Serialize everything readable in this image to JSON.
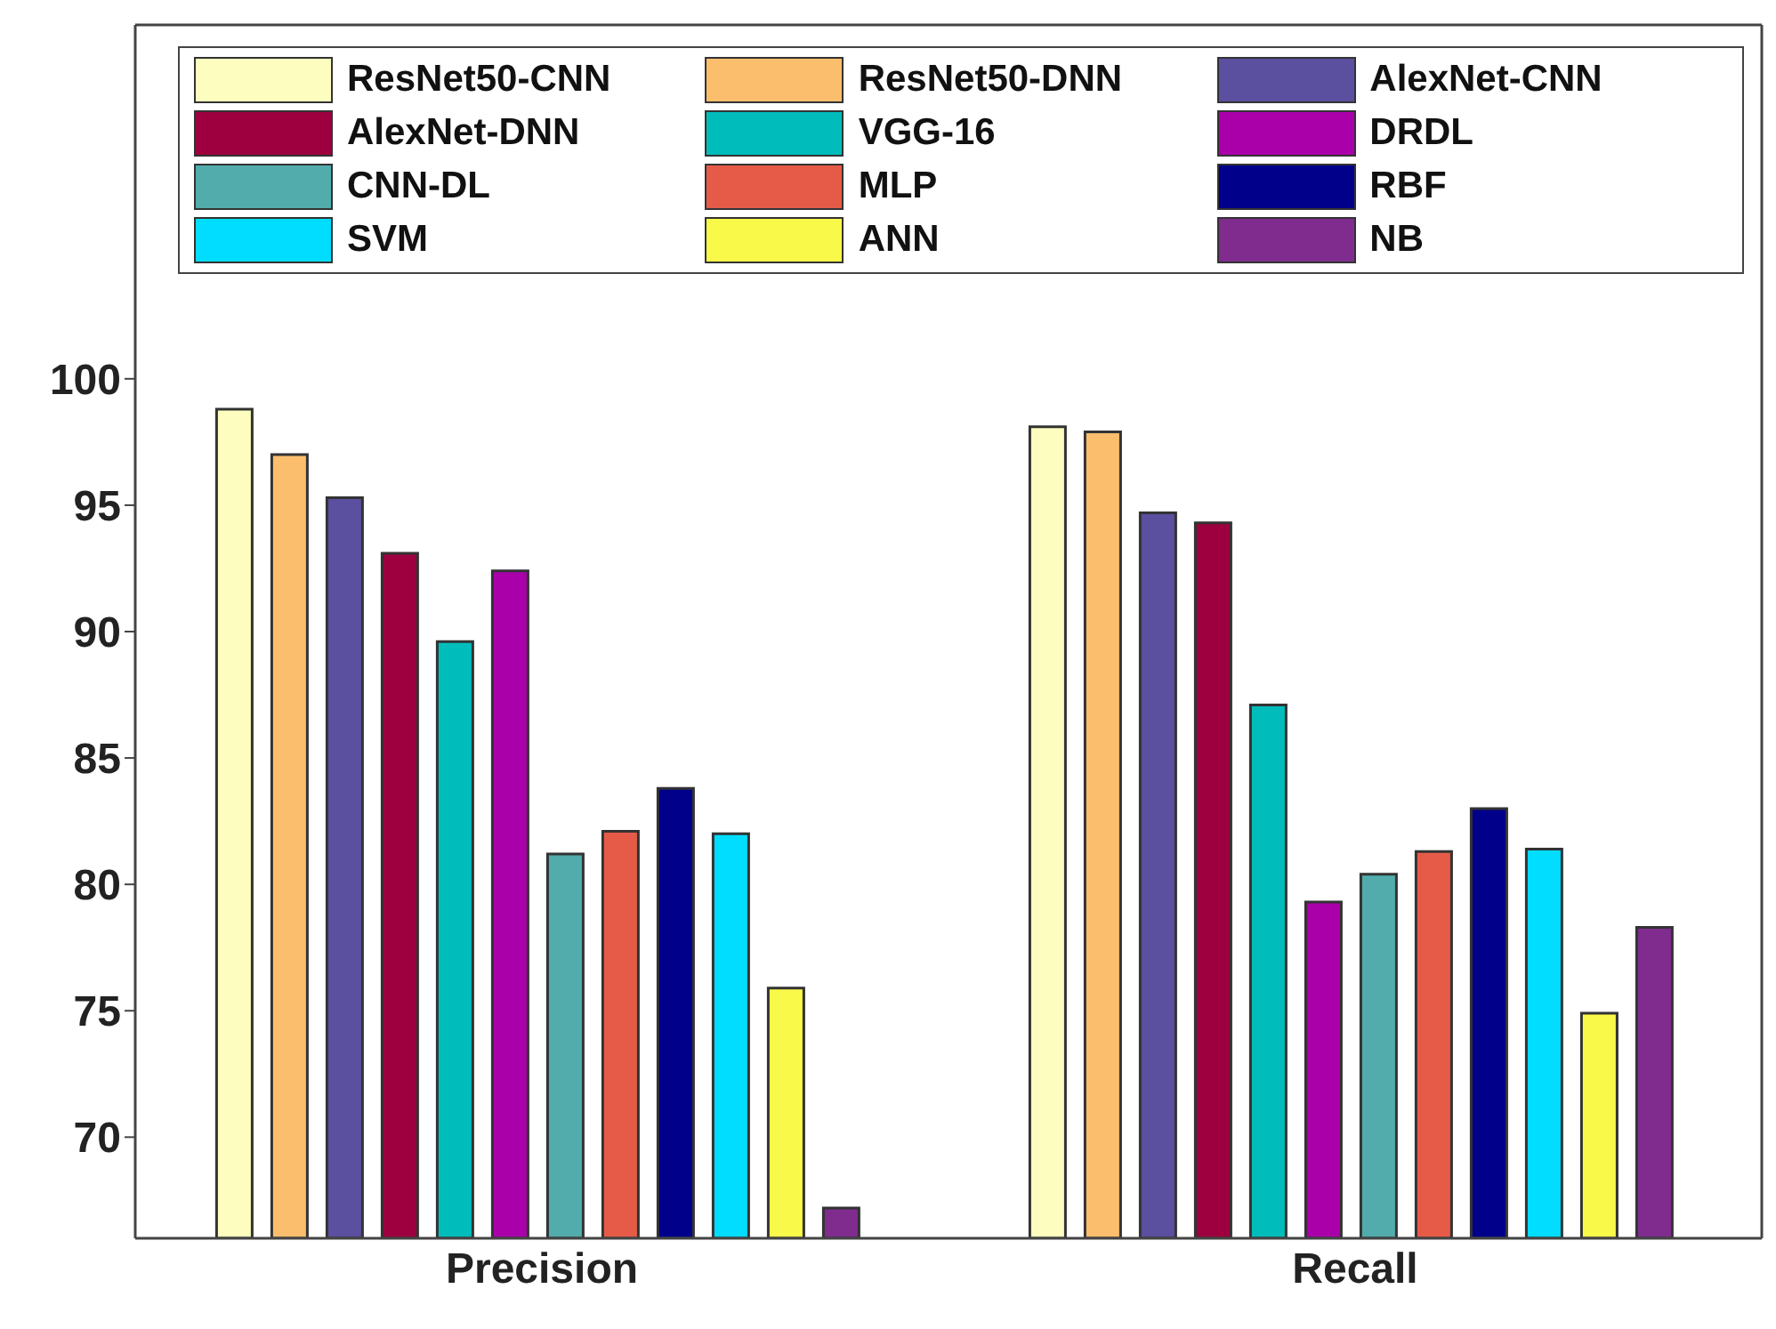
{
  "chart_data": {
    "type": "bar",
    "categories": [
      "Precision",
      "Recall"
    ],
    "series": [
      {
        "name": "ResNet50-CNN",
        "color": "#fdfdbf",
        "values": [
          98.8,
          98.1
        ]
      },
      {
        "name": "ResNet50-DNN",
        "color": "#fbbe6c",
        "values": [
          97.0,
          97.9
        ]
      },
      {
        "name": "AlexNet-CNN",
        "color": "#5b4f9f",
        "values": [
          95.3,
          94.7
        ]
      },
      {
        "name": "AlexNet-DNN",
        "color": "#9e003f",
        "values": [
          93.1,
          94.3
        ]
      },
      {
        "name": "VGG-16",
        "color": "#00bdbb",
        "values": [
          89.6,
          87.1
        ]
      },
      {
        "name": "DRDL",
        "color": "#aa00aa",
        "values": [
          92.4,
          79.3
        ]
      },
      {
        "name": "CNN-DL",
        "color": "#52acac",
        "values": [
          81.2,
          80.4
        ]
      },
      {
        "name": "MLP",
        "color": "#e65b48",
        "values": [
          82.1,
          81.3
        ]
      },
      {
        "name": "RBF",
        "color": "#00008b",
        "values": [
          83.8,
          83.0
        ]
      },
      {
        "name": "SVM",
        "color": "#00ddff",
        "values": [
          82.0,
          81.4
        ]
      },
      {
        "name": "ANN",
        "color": "#f9f94a",
        "values": [
          75.9,
          74.9
        ]
      },
      {
        "name": "NB",
        "color": "#7f2c8e",
        "values": [
          67.2,
          78.3
        ]
      }
    ],
    "ylim": [
      66,
      114
    ],
    "yticks": [
      70,
      75,
      80,
      85,
      90,
      95,
      100
    ],
    "legend": "top",
    "grid": false
  }
}
